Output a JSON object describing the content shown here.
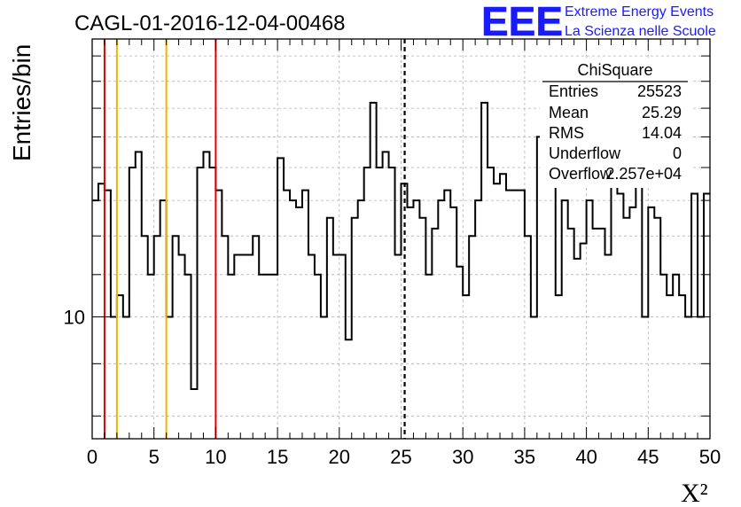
{
  "title": "CAGL-01-2016-12-04-00468",
  "logo": {
    "text": "EEE",
    "line1": "Extreme Energy Events",
    "line2": "La Scienza nelle Scuole",
    "color": "#1a1aff"
  },
  "stats": {
    "name": "ChiSquare",
    "rows": [
      {
        "label": "Entries",
        "value": "25523"
      },
      {
        "label": "Mean",
        "value": "25.29"
      },
      {
        "label": "RMS",
        "value": "14.04"
      },
      {
        "label": "Underflow",
        "value": "0"
      },
      {
        "label": "Overflow",
        "value": "2.257e+04"
      }
    ]
  },
  "chart_data": {
    "type": "histogram-step",
    "xlabel": "X²",
    "ylabel": "Entries/bin",
    "xlim": [
      0,
      50
    ],
    "ylog": true,
    "ylim": [
      7.6,
      18.7
    ],
    "ytick_labels": [
      {
        "value": 10,
        "label": "10"
      }
    ],
    "xticks": [
      0,
      5,
      10,
      15,
      20,
      25,
      30,
      35,
      40,
      45,
      50
    ],
    "grid": true,
    "bin_width": 0.5,
    "values": [
      13,
      13.5,
      13.3,
      10,
      10.5,
      10,
      14,
      14.5,
      12,
      11,
      12,
      13,
      10,
      12,
      11.5,
      11,
      8.5,
      14,
      14.5,
      14,
      13.3,
      12,
      11,
      11.5,
      11.5,
      11.5,
      12,
      11,
      11,
      11,
      14.3,
      13.3,
      13,
      12.8,
      13.3,
      11.5,
      11,
      10,
      12.5,
      11.5,
      11.5,
      9.5,
      12.5,
      13,
      14,
      16.2,
      14,
      14.5,
      14,
      11.5,
      13.5,
      12.8,
      13,
      12.5,
      11,
      12.2,
      13,
      13.3,
      12.8,
      11.2,
      10.5,
      12,
      13,
      16.2,
      14,
      13.5,
      13.8,
      13.3,
      13.3,
      13.3,
      12,
      10,
      15,
      14.5,
      13.8,
      10.5,
      13,
      12.2,
      11.4,
      11.8,
      13,
      12.2,
      12.2,
      11.5,
      13.8,
      13.2,
      12.5,
      12.8,
      13.5,
      10,
      12.8,
      12.5,
      11,
      10.5,
      11,
      10.5,
      10,
      13.2,
      10,
      13.2
    ],
    "vlines": [
      {
        "x": 1,
        "color": "#e00000",
        "style": "solid"
      },
      {
        "x": 2,
        "color": "#f0b400",
        "style": "solid"
      },
      {
        "x": 6,
        "color": "#f0b400",
        "style": "solid"
      },
      {
        "x": 10,
        "color": "#e00000",
        "style": "solid"
      },
      {
        "x": 25.29,
        "color": "#000000",
        "style": "dashed"
      }
    ]
  }
}
